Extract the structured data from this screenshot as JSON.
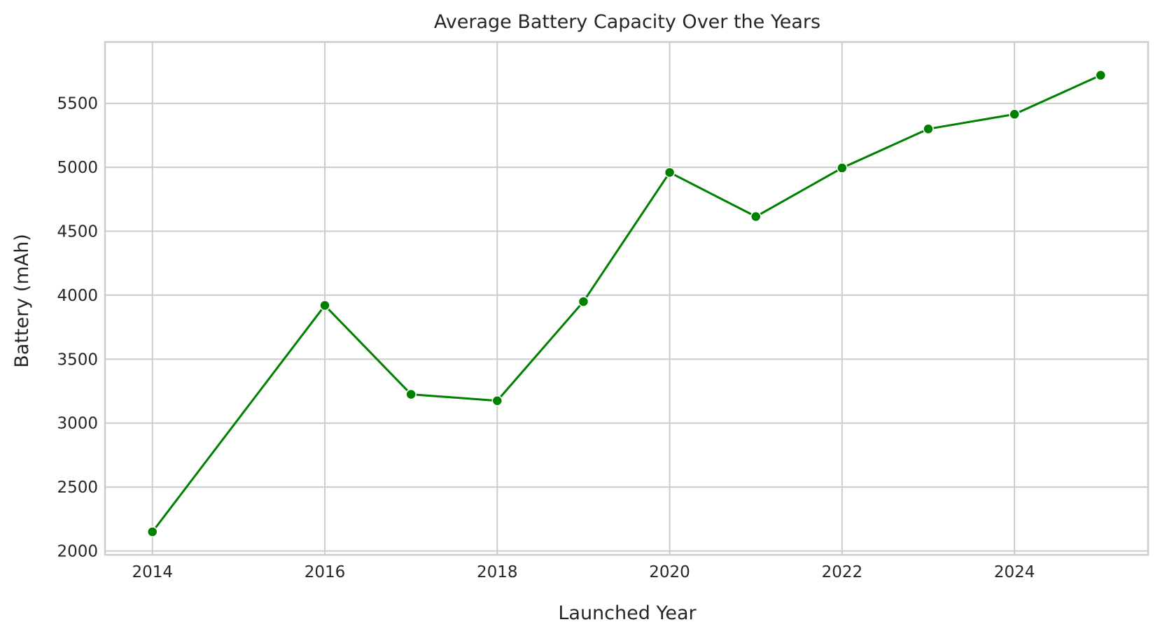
{
  "chart_data": {
    "type": "line",
    "title": "Average Battery Capacity Over the Years",
    "xlabel": "Launched Year",
    "ylabel": "Battery (mAh)",
    "xlim": [
      2013.45,
      2025.55
    ],
    "ylim": [
      1970,
      5980
    ],
    "xticks": [
      2014,
      2016,
      2018,
      2020,
      2022,
      2024
    ],
    "yticks": [
      2000,
      2500,
      3000,
      3500,
      4000,
      4500,
      5000,
      5500
    ],
    "grid": true,
    "legend": "none",
    "series": [
      {
        "color": "#008000",
        "marker": "circle",
        "x": [
          2014,
          2016,
          2017,
          2018,
          2019,
          2020,
          2021,
          2022,
          2023,
          2024,
          2025
        ],
        "y": [
          2150,
          3920,
          3225,
          3175,
          3950,
          4960,
          4615,
          4995,
          5300,
          5415,
          5720
        ]
      }
    ]
  }
}
